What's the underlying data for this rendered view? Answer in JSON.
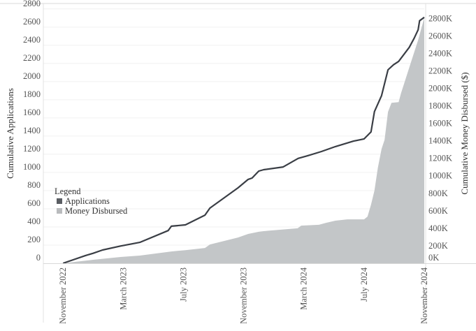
{
  "chart_data": {
    "type": "line+area",
    "xlabel": "",
    "ylabel_left": "Cumulative Applications",
    "ylabel_right": "Cumulative Money Disbursed ($)",
    "x_ticks": [
      "November 2022",
      "March 2023",
      "July 2023",
      "November 2023",
      "March 2024",
      "July 2024",
      "November 2024"
    ],
    "x_tick_dates": [
      "2022-11-01",
      "2023-03-01",
      "2023-07-01",
      "2023-11-01",
      "2024-03-01",
      "2024-07-01",
      "2024-11-01"
    ],
    "xlim": [
      "2022-09-22",
      "2024-11-01"
    ],
    "y_left_ticks": [
      0,
      200,
      400,
      600,
      800,
      1000,
      1200,
      1400,
      1600,
      1800,
      2000,
      2200,
      2400,
      2600,
      2800
    ],
    "y_left_lim": [
      0,
      2860
    ],
    "y_right_ticks": [
      "0K",
      "200K",
      "400K",
      "600K",
      "800K",
      "1000K",
      "1200K",
      "1400K",
      "1600K",
      "1800K",
      "2000K",
      "2200K",
      "2400K",
      "2600K",
      "2800K"
    ],
    "y_right_tick_values": [
      0,
      200,
      400,
      600,
      800,
      1000,
      1200,
      1400,
      1600,
      1800,
      2000,
      2200,
      2400,
      2600,
      2800
    ],
    "y_right_lim": [
      0,
      2970
    ],
    "y_right_unit": "thousand $",
    "grid": "horizontal",
    "legend": {
      "title": "Legend",
      "placement": "left-middle",
      "entries": [
        "Applications",
        "Money Disbursed"
      ]
    },
    "colors": {
      "applications": "#3a3e45",
      "money": "#c3c6c8",
      "legend_applications": "#5a5d62",
      "legend_money": "#b9bbbd"
    },
    "series": [
      {
        "name": "Applications",
        "type": "line",
        "axis": "left",
        "x": [
          "2022-11-01",
          "2022-12-16",
          "2023-01-01",
          "2023-01-20",
          "2023-02-26",
          "2023-04-04",
          "2023-05-31",
          "2023-06-07",
          "2023-07-05",
          "2023-08-14",
          "2023-08-24",
          "2023-10-20",
          "2023-11-10",
          "2023-11-18",
          "2023-12-01",
          "2023-12-11",
          "2024-01-20",
          "2024-02-20",
          "2024-03-09",
          "2024-04-06",
          "2024-05-04",
          "2024-06-10",
          "2024-07-01",
          "2024-07-15",
          "2024-07-22",
          "2024-08-06",
          "2024-08-19",
          "2024-08-30",
          "2024-09-10",
          "2024-10-01",
          "2024-10-11",
          "2024-10-19",
          "2024-10-22",
          "2024-11-01"
        ],
        "values": [
          0,
          85,
          110,
          146,
          190,
          230,
          360,
          408,
          423,
          530,
          607,
          830,
          923,
          938,
          1015,
          1030,
          1060,
          1155,
          1185,
          1230,
          1285,
          1345,
          1369,
          1446,
          1670,
          1846,
          2130,
          2185,
          2223,
          2377,
          2477,
          2570,
          2670,
          2708
        ]
      },
      {
        "name": "Money Disbursed",
        "type": "area",
        "axis": "right",
        "unit": "K$",
        "x": [
          "2022-11-01",
          "2023-01-01",
          "2023-02-26",
          "2023-04-04",
          "2023-06-07",
          "2023-07-05",
          "2023-08-14",
          "2023-08-24",
          "2023-10-20",
          "2023-11-10",
          "2023-12-01",
          "2023-12-11",
          "2024-02-19",
          "2024-02-26",
          "2024-04-01",
          "2024-04-16",
          "2024-05-04",
          "2024-05-28",
          "2024-07-01",
          "2024-07-08",
          "2024-07-15",
          "2024-07-22",
          "2024-07-29",
          "2024-08-06",
          "2024-08-12",
          "2024-08-19",
          "2024-08-26",
          "2024-09-10",
          "2024-09-15",
          "2024-10-04",
          "2024-10-19",
          "2024-11-01"
        ],
        "values": [
          0,
          40,
          72,
          88,
          135,
          150,
          175,
          215,
          295,
          335,
          360,
          367,
          400,
          430,
          440,
          463,
          487,
          502,
          502,
          534,
          670,
          830,
          1092,
          1308,
          1411,
          1730,
          1834,
          1842,
          1946,
          2289,
          2552,
          2807
        ]
      }
    ]
  }
}
